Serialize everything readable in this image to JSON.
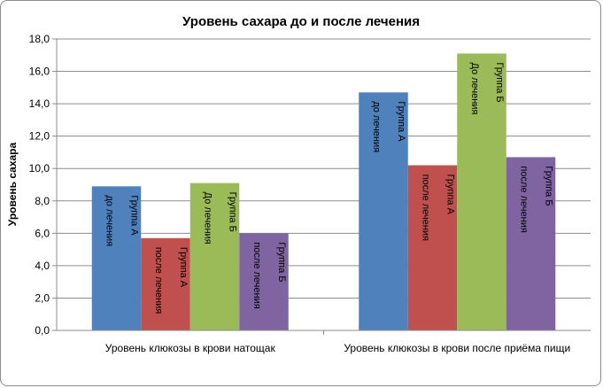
{
  "chart_data": {
    "type": "bar",
    "title": "Уровень сахара до и после лечения",
    "xlabel": "",
    "ylabel": "Уровень сахара",
    "ylim": [
      0,
      18
    ],
    "ytick_labels": [
      "0,0",
      "2,0",
      "4,0",
      "6,0",
      "8,0",
      "10,0",
      "12,0",
      "14,0",
      "16,0",
      "18,0"
    ],
    "grid": true,
    "legend": "none",
    "categories": [
      "Уровень клюкозы в крови натощак",
      "Уровень клюкозы в крови после приёма пищи"
    ],
    "series": [
      {
        "color": "#4f81bd",
        "labels": [
          [
            "до лечения",
            "Группа А"
          ],
          [
            "до лечения",
            "Группа А"
          ]
        ],
        "values": [
          8.9,
          14.7
        ]
      },
      {
        "color": "#c0504d",
        "labels": [
          [
            "после лечения",
            "Группа А"
          ],
          [
            "после лечения",
            "Группа А"
          ]
        ],
        "values": [
          5.7,
          10.2
        ]
      },
      {
        "color": "#9bbb59",
        "labels": [
          [
            "До лечения",
            "Группа Б"
          ],
          [
            "До лечения",
            "Группа Б"
          ]
        ],
        "values": [
          9.1,
          17.1
        ]
      },
      {
        "color": "#8064a2",
        "labels": [
          [
            "после лечения",
            "Группа Б"
          ],
          [
            "после лечения",
            "Группа Б"
          ]
        ],
        "values": [
          6.0,
          10.7
        ]
      }
    ]
  }
}
